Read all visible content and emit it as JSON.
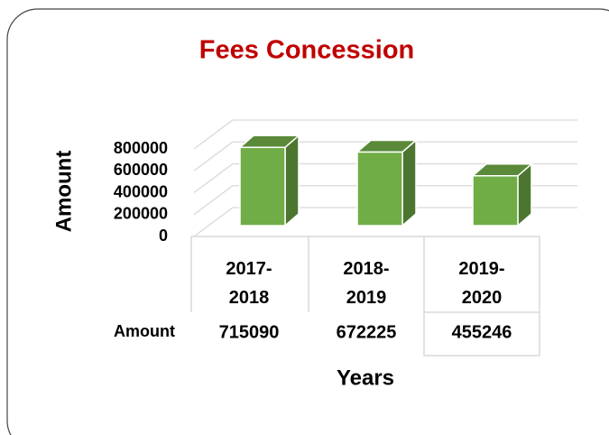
{
  "chart_data": {
    "type": "bar3d",
    "title": "Fees Concession",
    "y_label": "Amount",
    "x_label": "Years",
    "categories": [
      "2017-2018",
      "2018-2019",
      "2019-2020"
    ],
    "series": [
      {
        "name": "Amount",
        "color": "#70ad47",
        "values": [
          715090,
          672225,
          455246
        ]
      }
    ],
    "ylim": [
      0,
      800000
    ],
    "yticks": [
      0,
      200000,
      400000,
      600000,
      800000
    ],
    "grid": true,
    "data_table": true
  }
}
